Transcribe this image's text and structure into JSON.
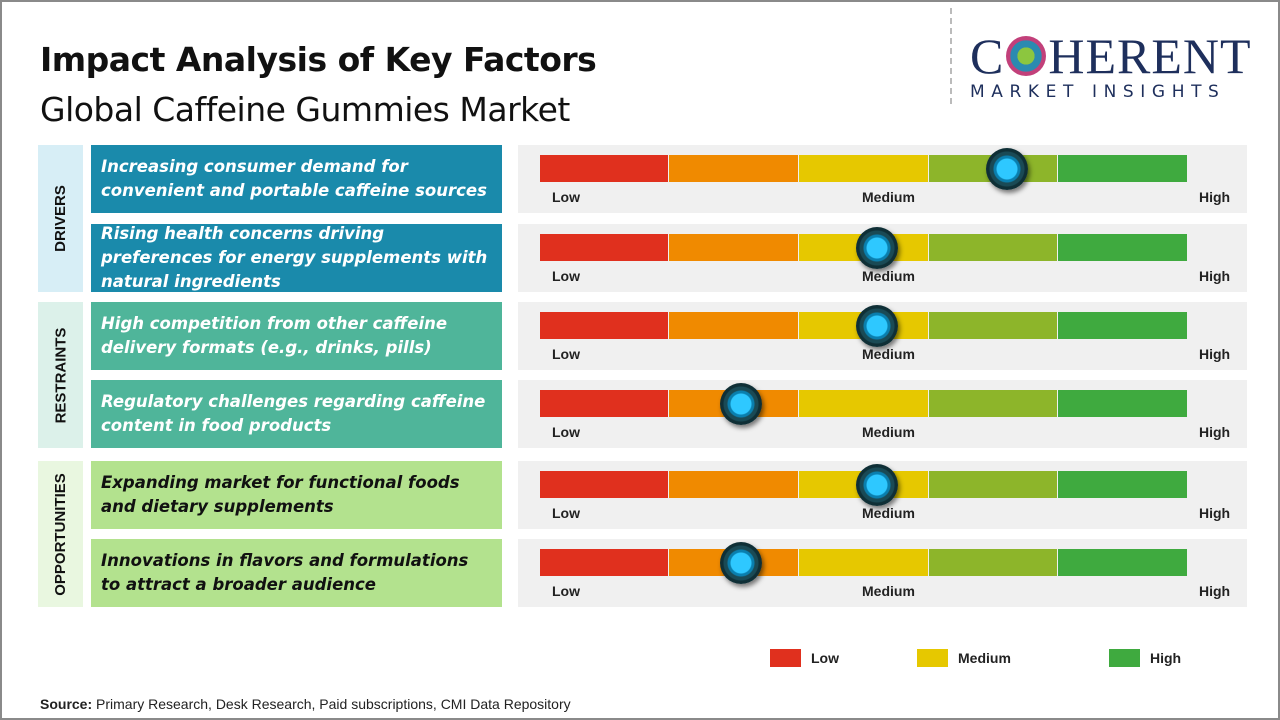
{
  "title": "Impact Analysis of Key Factors",
  "subtitle": "Global Caffeine Gummies Market",
  "logo": {
    "main": "COHERENT",
    "sub": "MARKET INSIGHTS"
  },
  "scale": {
    "low": "Low",
    "medium": "Medium",
    "high": "High",
    "colors": [
      "#e0301e",
      "#f08a00",
      "#e6c800",
      "#8db52a",
      "#3faa3f"
    ]
  },
  "categories": [
    {
      "label": "DRIVERS",
      "color": "#1a8aab",
      "bg": "#d7eef6",
      "text_color": "#ffffff",
      "factors": [
        {
          "text": "Increasing consumer demand for convenient and portable caffeine sources",
          "impact": 0.72
        },
        {
          "text": "Rising health concerns driving preferences for energy supplements with natural ingredients",
          "impact": 0.52
        }
      ]
    },
    {
      "label": "RESTRAINTS",
      "color": "#4fb59a",
      "bg": "#dcf1ea",
      "text_color": "#ffffff",
      "factors": [
        {
          "text": "High competition from other caffeine delivery formats (e.g., drinks, pills)",
          "impact": 0.52
        },
        {
          "text": "Regulatory challenges regarding caffeine content in food products",
          "impact": 0.31
        }
      ]
    },
    {
      "label": "OPPORTUNITIES",
      "color": "#b3e28e",
      "bg": "#e9f7e0",
      "text_color": "#111111",
      "factors": [
        {
          "text": "Expanding market for functional foods and dietary supplements",
          "impact": 0.52
        },
        {
          "text": "Innovations in flavors and formulations to attract a broader audience",
          "impact": 0.31
        }
      ]
    }
  ],
  "legend": [
    {
      "label": "Low",
      "color": "#e0301e"
    },
    {
      "label": "Medium",
      "color": "#e6c800"
    },
    {
      "label": "High",
      "color": "#3faa3f"
    }
  ],
  "source": {
    "label": "Source:",
    "text": " Primary Research, Desk Research, Paid subscriptions, CMI Data Repository"
  }
}
